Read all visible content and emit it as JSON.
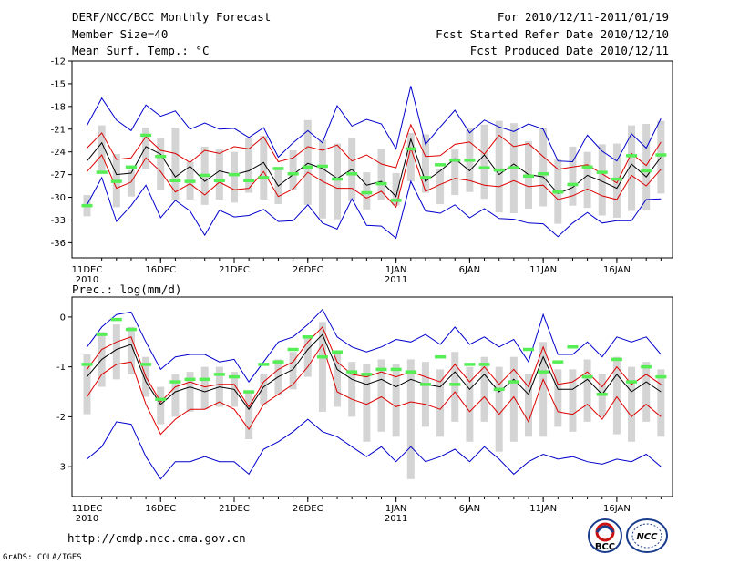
{
  "header": {
    "title": "DERF/NCC/BCC Monthly Forecast",
    "member_size": "Member Size=40",
    "variable": "Mean Surf. Temp.: °C",
    "period": "For 2010/12/11-2011/01/19",
    "started": "Fcst Started Refer Date 2010/12/10",
    "produced": "Fcst Produced Date 2010/12/11"
  },
  "footer": {
    "url": "http://cmdp.ncc.cma.gov.cn",
    "grads": "GrADS: COLA/IGES",
    "logo_bcc": "BCC",
    "logo_ncc": "NCC"
  },
  "colors": {
    "spread": "#0000cc",
    "quantile": "#dd0000",
    "mean": "#000000",
    "box": "#d4d4d4",
    "observation": "#55ee55"
  },
  "chart_data": [
    {
      "type": "line",
      "title": "Mean Surf. Temp.: °C",
      "ylim": [
        -12,
        -38
      ],
      "yticks": [
        "-12",
        "-15",
        "-18",
        "-21",
        "-24",
        "-27",
        "-30",
        "-33",
        "-36"
      ],
      "xticks": [
        {
          "day": 0,
          "label": "11DEC",
          "sub": "2010"
        },
        {
          "day": 5,
          "label": "16DEC",
          "sub": ""
        },
        {
          "day": 10,
          "label": "21DEC",
          "sub": ""
        },
        {
          "day": 15,
          "label": "26DEC",
          "sub": ""
        },
        {
          "day": 21,
          "label": "1JAN",
          "sub": "2011"
        },
        {
          "day": 26,
          "label": "6JAN",
          "sub": ""
        },
        {
          "day": 31,
          "label": "11JAN",
          "sub": ""
        },
        {
          "day": 36,
          "label": "16JAN",
          "sub": ""
        }
      ],
      "series": [
        {
          "name": "max",
          "color": "#0000cc",
          "values": [
            -20.5,
            -16.9,
            -19.8,
            -21.2,
            -17.8,
            -19.3,
            -18.6,
            -21,
            -20.2,
            -21,
            -20.9,
            -22.1,
            -20.8,
            -24.7,
            -22.8,
            -21.2,
            -22.8,
            -17.9,
            -20.6,
            -19.7,
            -20.3,
            -23.6,
            -15.3,
            -23,
            -20.7,
            -18.5,
            -21.5,
            -19.8,
            -20.7,
            -21.3,
            -20.3,
            -21,
            -25.2,
            -25.3,
            -21.8,
            -23.9,
            -25.2,
            -21.6,
            -23.5,
            -19.6
          ]
        },
        {
          "name": "upper",
          "color": "#dd0000",
          "values": [
            -23.5,
            -21.5,
            -25,
            -24.8,
            -22,
            -23.8,
            -24.2,
            -25.4,
            -23.8,
            -24.2,
            -23.3,
            -23.6,
            -22,
            -25.3,
            -24.8,
            -23.3,
            -23.8,
            -23.1,
            -25.2,
            -24.4,
            -25.6,
            -26.1,
            -20.4,
            -24.6,
            -24.5,
            -23,
            -22.7,
            -24.3,
            -21.8,
            -23.3,
            -22.9,
            -24.6,
            -26.3,
            -26,
            -25.7,
            -26.9,
            -28.1,
            -24.2,
            -25.8,
            -22.7
          ]
        },
        {
          "name": "mean",
          "color": "#000000",
          "values": [
            -25.2,
            -22.8,
            -27,
            -26.8,
            -23.3,
            -24.3,
            -27.3,
            -25.9,
            -27.9,
            -26.5,
            -27,
            -26.5,
            -25.4,
            -28.5,
            -27,
            -25.5,
            -26.2,
            -27.5,
            -26.3,
            -28.4,
            -27.9,
            -29.9,
            -22.3,
            -27.9,
            -26.5,
            -24.9,
            -26.5,
            -24.4,
            -27,
            -25.6,
            -27,
            -27.3,
            -29.5,
            -28.7,
            -27.1,
            -27.9,
            -28.8,
            -25.6,
            -27.3,
            -24.7
          ]
        },
        {
          "name": "lower",
          "color": "#dd0000",
          "values": [
            -26.6,
            -24.4,
            -28.8,
            -28,
            -24.8,
            -26.6,
            -29.3,
            -28.2,
            -29.7,
            -28,
            -29,
            -28.8,
            -26.6,
            -29.9,
            -28.9,
            -26.7,
            -27.9,
            -28.8,
            -28.8,
            -30.1,
            -29.2,
            -31.3,
            -23.5,
            -29.2,
            -28.3,
            -27.5,
            -27.8,
            -28.4,
            -28.6,
            -27.8,
            -28.6,
            -28.4,
            -30.3,
            -29.8,
            -28.9,
            -29.8,
            -30.3,
            -27.1,
            -28.5,
            -26.3
          ]
        },
        {
          "name": "min",
          "color": "#0000cc",
          "values": [
            -31,
            -27.4,
            -33.2,
            -31.1,
            -28.4,
            -32.7,
            -30.4,
            -31.8,
            -35,
            -31.7,
            -32.6,
            -32.4,
            -31.6,
            -33.2,
            -33.1,
            -31,
            -33.4,
            -34.2,
            -30.2,
            -33.7,
            -33.8,
            -35.4,
            -27.9,
            -31.8,
            -32.1,
            -31,
            -32.7,
            -31.5,
            -32.8,
            -32.9,
            -33.4,
            -33.5,
            -35.2,
            -33.4,
            -32,
            -33.4,
            -33.1,
            -33.1,
            -30.3,
            -30.2
          ]
        }
      ],
      "boxes_top": [
        -29.7,
        -20.5,
        -24.3,
        -26.4,
        -20.8,
        -22.2,
        -20.8,
        -25.3,
        -23.3,
        -23.7,
        -24,
        -22.2,
        -21.9,
        -26,
        -23.8,
        -19.8,
        -22.4,
        -22.9,
        -22.2,
        -26.7,
        -23.6,
        -26.8,
        -21.5,
        -21.7,
        -26.2,
        -23.7,
        -20.8,
        -20.4,
        -19.9,
        -20.2,
        -22.6,
        -20.9,
        -25,
        -23.3,
        -24,
        -23,
        -22.9,
        -20.5,
        -20.3,
        -19.9
      ],
      "boxes_bottom": [
        -32.5,
        -26.6,
        -31.3,
        -29.9,
        -26.2,
        -29,
        -30.4,
        -30.3,
        -31,
        -30.3,
        -30.7,
        -29.4,
        -30.3,
        -30.9,
        -29,
        -31,
        -32.8,
        -32.9,
        -30.5,
        -31.6,
        -30.4,
        -31.1,
        -27.9,
        -29.4,
        -30.9,
        -29.7,
        -29.3,
        -30.2,
        -32,
        -32.1,
        -31.5,
        -31.2,
        -33.5,
        -31.1,
        -31.4,
        -32.4,
        -32.7,
        -31.8,
        -31.7,
        -29.5
      ],
      "observations": [
        -31.1,
        -26.7,
        -27.9,
        -26,
        -21.8,
        -24.6,
        -27.8,
        -27.9,
        -27.1,
        -27.8,
        -27,
        -27.8,
        -27.4,
        -26.2,
        -26.9,
        -26,
        -25.9,
        -27.6,
        -26.9,
        -29.4,
        -28.2,
        -30.4,
        -23.6,
        -27.4,
        -25.7,
        -25.1,
        -25.1,
        -26.1,
        -26.4,
        -26.1,
        -27.2,
        -26.9,
        -29.3,
        -28.3,
        -26,
        -26.7,
        -27.6,
        -24.5,
        -26.5,
        -24.4
      ]
    },
    {
      "type": "line",
      "title": "Prec.: log(mm/d)",
      "ylim": [
        0.4,
        -3.6
      ],
      "yticks": [
        "0",
        "-1",
        "-2",
        "-3"
      ],
      "xticks": [
        {
          "day": 0,
          "label": "11DEC",
          "sub": "2010"
        },
        {
          "day": 5,
          "label": "16DEC",
          "sub": ""
        },
        {
          "day": 10,
          "label": "21DEC",
          "sub": ""
        },
        {
          "day": 15,
          "label": "26DEC",
          "sub": ""
        },
        {
          "day": 21,
          "label": "1JAN",
          "sub": "2011"
        },
        {
          "day": 26,
          "label": "6JAN",
          "sub": ""
        },
        {
          "day": 31,
          "label": "11JAN",
          "sub": ""
        },
        {
          "day": 36,
          "label": "16JAN",
          "sub": ""
        }
      ],
      "series": [
        {
          "name": "max",
          "color": "#0000cc",
          "values": [
            -0.6,
            -0.2,
            0.05,
            0.1,
            -0.5,
            -1.05,
            -0.8,
            -0.75,
            -0.75,
            -0.9,
            -0.85,
            -1.3,
            -0.9,
            -0.5,
            -0.4,
            -0.15,
            0.15,
            -0.4,
            -0.6,
            -0.7,
            -0.6,
            -0.45,
            -0.5,
            -0.35,
            -0.55,
            -0.2,
            -0.55,
            -0.4,
            -0.6,
            -0.45,
            -0.9,
            0.05,
            -0.75,
            -0.75,
            -0.5,
            -0.8,
            -0.4,
            -0.5,
            -0.4,
            -0.75
          ]
        },
        {
          "name": "upper",
          "color": "#dd0000",
          "values": [
            -1.05,
            -0.65,
            -0.5,
            -0.4,
            -1.2,
            -1.7,
            -1.4,
            -1.3,
            -1.4,
            -1.35,
            -1.35,
            -1.8,
            -1.3,
            -1.05,
            -0.9,
            -0.5,
            -0.2,
            -0.9,
            -1.15,
            -1.2,
            -1.1,
            -1.2,
            -1.1,
            -1.2,
            -1.3,
            -0.95,
            -1.3,
            -1.0,
            -1.35,
            -1.05,
            -1.4,
            -0.6,
            -1.35,
            -1.3,
            -1.1,
            -1.4,
            -1.0,
            -1.35,
            -1.15,
            -1.35
          ]
        },
        {
          "name": "mean",
          "color": "#000000",
          "values": [
            -1.2,
            -0.85,
            -0.65,
            -0.55,
            -1.3,
            -1.75,
            -1.5,
            -1.4,
            -1.5,
            -1.4,
            -1.45,
            -1.85,
            -1.4,
            -1.2,
            -1.05,
            -0.65,
            -0.35,
            -1.05,
            -1.25,
            -1.35,
            -1.25,
            -1.4,
            -1.25,
            -1.35,
            -1.4,
            -1.1,
            -1.45,
            -1.15,
            -1.5,
            -1.25,
            -1.55,
            -0.8,
            -1.45,
            -1.45,
            -1.25,
            -1.55,
            -1.15,
            -1.5,
            -1.3,
            -1.5
          ]
        },
        {
          "name": "lower",
          "color": "#dd0000",
          "values": [
            -1.6,
            -1.15,
            -0.95,
            -0.9,
            -1.75,
            -2.35,
            -2.05,
            -1.85,
            -1.85,
            -1.7,
            -1.85,
            -2.25,
            -1.75,
            -1.55,
            -1.35,
            -1.0,
            -0.55,
            -1.5,
            -1.65,
            -1.75,
            -1.6,
            -1.8,
            -1.7,
            -1.75,
            -1.85,
            -1.5,
            -1.9,
            -1.6,
            -1.95,
            -1.6,
            -2.1,
            -1.25,
            -1.9,
            -1.95,
            -1.75,
            -2.05,
            -1.6,
            -2.0,
            -1.75,
            -2.0
          ]
        },
        {
          "name": "min",
          "color": "#0000cc",
          "values": [
            -2.85,
            -2.6,
            -2.1,
            -2.15,
            -2.8,
            -3.25,
            -2.9,
            -2.9,
            -2.8,
            -2.9,
            -2.9,
            -3.15,
            -2.65,
            -2.5,
            -2.3,
            -2.05,
            -2.3,
            -2.4,
            -2.6,
            -2.8,
            -2.6,
            -2.9,
            -2.6,
            -2.9,
            -2.8,
            -2.65,
            -2.9,
            -2.6,
            -2.85,
            -3.15,
            -2.9,
            -2.75,
            -2.85,
            -2.8,
            -2.9,
            -2.95,
            -2.85,
            -2.9,
            -2.75,
            -3.0
          ]
        }
      ],
      "boxes_top": [
        -0.75,
        -0.3,
        -0.15,
        -0.2,
        -0.8,
        -1.4,
        -1.15,
        -1.1,
        -1.0,
        -1.0,
        -1.1,
        -1.5,
        -1.15,
        -0.85,
        -0.7,
        -0.4,
        -0.1,
        -0.7,
        -0.9,
        -0.95,
        -0.85,
        -0.95,
        -0.85,
        -0.9,
        -1.05,
        -0.7,
        -1.0,
        -0.8,
        -1.0,
        -0.8,
        -1.15,
        -0.5,
        -1.05,
        -1.05,
        -0.85,
        -1.15,
        -0.8,
        -1.0,
        -0.9,
        -1.05
      ],
      "boxes_bottom": [
        -1.95,
        -1.4,
        -1.25,
        -1.15,
        -1.6,
        -2.15,
        -2.0,
        -1.9,
        -1.85,
        -1.8,
        -1.8,
        -2.45,
        -1.75,
        -1.55,
        -1.45,
        -1.2,
        -1.9,
        -1.8,
        -2.0,
        -2.5,
        -2.3,
        -2.4,
        -3.25,
        -2.2,
        -2.4,
        -2.1,
        -2.5,
        -2.1,
        -2.7,
        -2.5,
        -2.4,
        -2.4,
        -2.2,
        -2.3,
        -2.1,
        -2.0,
        -2.35,
        -2.5,
        -2.1,
        -2.4
      ],
      "observations": [
        -0.95,
        -0.35,
        -0.05,
        -0.25,
        -0.95,
        -1.65,
        -1.3,
        -1.25,
        -1.25,
        -1.15,
        -1.2,
        -1.5,
        -0.95,
        -0.9,
        -0.65,
        -0.4,
        -0.8,
        -0.7,
        -1.1,
        -1.15,
        -1.05,
        -1.05,
        -1.1,
        -1.35,
        -0.8,
        -1.35,
        -0.95,
        -0.95,
        -1.45,
        -1.3,
        -0.65,
        -1.1,
        -0.9,
        -0.6,
        -1.2,
        -1.55,
        -0.85,
        -1.3,
        -1.0,
        -1.2
      ]
    }
  ]
}
